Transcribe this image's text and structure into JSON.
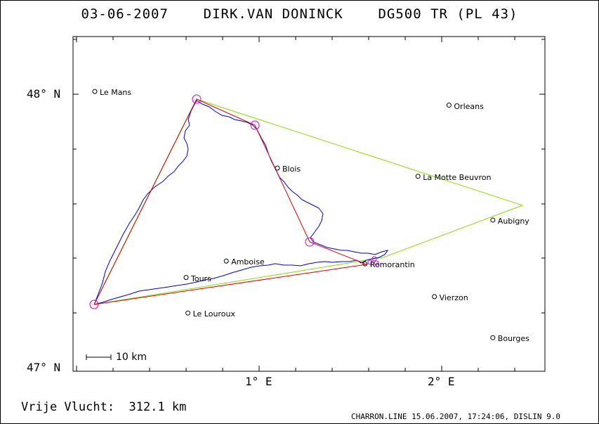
{
  "title": "03-06-2007    DIRK.VAN DONINCK    DG500 TR (PL 43)",
  "footer": {
    "distance": "Vrije Vlucht:  312.1 km",
    "credit": "CHARRON.LINE 15.06.2007, 17:24:06, DISLIN 9.0"
  },
  "axes": {
    "y_labels": [
      {
        "text": "48° N",
        "lat": 48
      },
      {
        "text": "47° N",
        "lat": 47
      }
    ],
    "x_labels": [
      {
        "text": "1° E",
        "lon": 1
      },
      {
        "text": "2° E",
        "lon": 2
      }
    ]
  },
  "scale_bar": {
    "label": "10 km"
  },
  "cities": [
    {
      "name": "Le Mans",
      "lon": 0.1,
      "lat": 48.01
    },
    {
      "name": "Orleans",
      "lon": 2.04,
      "lat": 47.96
    },
    {
      "name": "Blois",
      "lon": 1.1,
      "lat": 47.73
    },
    {
      "name": "La Motte Beuvron",
      "lon": 1.87,
      "lat": 47.7
    },
    {
      "name": "Aubigny",
      "lon": 2.28,
      "lat": 47.54
    },
    {
      "name": "Amboise",
      "lon": 0.82,
      "lat": 47.39
    },
    {
      "name": "Romorantin",
      "lon": 1.58,
      "lat": 47.38
    },
    {
      "name": "Tours",
      "lon": 0.6,
      "lat": 47.33
    },
    {
      "name": "Vierzon",
      "lon": 1.96,
      "lat": 47.26
    },
    {
      "name": "Le Louroux",
      "lon": 0.61,
      "lat": 47.2
    },
    {
      "name": "Bourges",
      "lon": 2.28,
      "lat": 47.11
    }
  ],
  "colors": {
    "track": "#0000cc",
    "task": "#dd0000",
    "triangle": "#88dd00",
    "turnpoint": "#dd00dd",
    "frame": "#000000"
  }
}
